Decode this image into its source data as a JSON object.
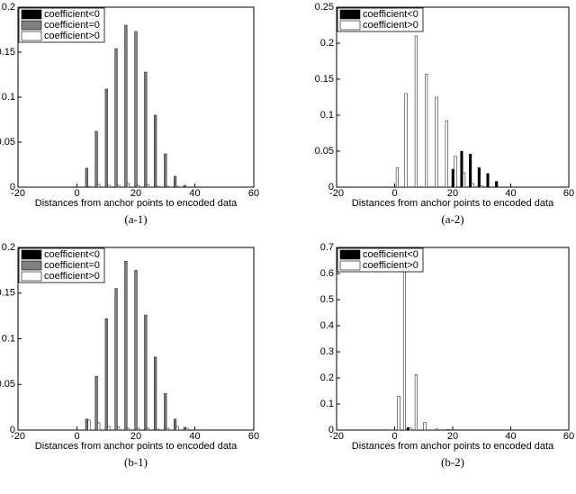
{
  "chart_data": [
    {
      "type": "bar",
      "caption": "(a-1)",
      "x_label": "Distances from anchor points to encoded data",
      "x": [
        3.3,
        6.6,
        10,
        13.3,
        16.6,
        20,
        23.3,
        26.6,
        30,
        33.3,
        36.6
      ],
      "series": [
        {
          "name": "coefficient<0",
          "color": "#000000",
          "values": [
            0,
            0,
            0,
            0,
            0,
            0,
            0,
            0,
            0,
            0,
            0
          ]
        },
        {
          "name": "coefficient=0",
          "color": "#808080",
          "values": [
            0.021,
            0.062,
            0.109,
            0.154,
            0.18,
            0.173,
            0.128,
            0.08,
            0.037,
            0.012,
            0.002
          ]
        },
        {
          "name": "coefficient>0",
          "color": "#ffffff",
          "values": [
            0.001,
            0.003,
            0.002,
            0.002,
            0.004,
            0.002,
            0.003,
            0.001,
            0.001,
            0.001,
            0
          ]
        }
      ],
      "xlim": [
        -20,
        60
      ],
      "xticks": [
        -20,
        0,
        20,
        40,
        60
      ],
      "ylim": [
        0,
        0.2
      ],
      "yticks": [
        0,
        0.05,
        0.1,
        0.15,
        0.2
      ],
      "legend": "upper left"
    },
    {
      "type": "bar",
      "caption": "(a-2)",
      "x_label": "Distances from anchor points to encoded data",
      "x": [
        0.5,
        3.5,
        7,
        10.5,
        14,
        17.5,
        20.5,
        23.5,
        26.5,
        29.5,
        32.5,
        35.5
      ],
      "series": [
        {
          "name": "coefficient<0",
          "color": "#000000",
          "values": [
            0,
            0,
            0,
            0,
            0,
            0,
            0.025,
            0.05,
            0.046,
            0.027,
            0.019,
            0.008
          ]
        },
        {
          "name": "coefficient>0",
          "color": "#ffffff",
          "values": [
            0.027,
            0.13,
            0.21,
            0.157,
            0.125,
            0.092,
            0.043,
            0.02,
            0.005,
            0.002,
            0,
            0
          ]
        }
      ],
      "xlim": [
        -20,
        60
      ],
      "xticks": [
        -20,
        0,
        20,
        40,
        60
      ],
      "ylim": [
        0,
        0.25
      ],
      "yticks": [
        0,
        0.05,
        0.1,
        0.15,
        0.2,
        0.25
      ],
      "legend": "upper left"
    },
    {
      "type": "bar",
      "caption": "(b-1)",
      "x_label": "Distances from anchor points to encoded data",
      "x": [
        3.3,
        6.6,
        10,
        13.3,
        16.6,
        20,
        23.3,
        26.6,
        30,
        33.3,
        36.6
      ],
      "series": [
        {
          "name": "coefficient<0",
          "color": "#000000",
          "values": [
            0,
            0,
            0,
            0,
            0,
            0,
            0,
            0,
            0,
            0,
            0
          ]
        },
        {
          "name": "coefficient=0",
          "color": "#808080",
          "values": [
            0.012,
            0.059,
            0.122,
            0.155,
            0.185,
            0.175,
            0.126,
            0.08,
            0.04,
            0.012,
            0.003
          ]
        },
        {
          "name": "coefficient>0",
          "color": "#ffffff",
          "values": [
            0.011,
            0.008,
            0.004,
            0.003,
            0.002,
            0.002,
            0.002,
            0.001,
            0.002,
            0.004,
            0.002
          ]
        }
      ],
      "xlim": [
        -20,
        60
      ],
      "xticks": [
        -20,
        0,
        20,
        40,
        60
      ],
      "ylim": [
        0,
        0.2
      ],
      "yticks": [
        0,
        0.05,
        0.1,
        0.15,
        0.2
      ],
      "legend": "upper left"
    },
    {
      "type": "bar",
      "caption": "(b-2)",
      "x_label": "Distances from anchor points to encoded data",
      "x": [
        1,
        3,
        5,
        7,
        10,
        14,
        18
      ],
      "series": [
        {
          "name": "coefficient<0",
          "color": "#000000",
          "values": [
            0,
            0,
            0.01,
            0,
            0,
            0,
            0
          ]
        },
        {
          "name": "coefficient>0",
          "color": "#ffffff",
          "values": [
            0.13,
            0.62,
            0.008,
            0.213,
            0.03,
            0.004,
            0.003
          ]
        }
      ],
      "xlim": [
        -20,
        60
      ],
      "xticks": [
        -20,
        0,
        20,
        40,
        60
      ],
      "ylim": [
        0,
        0.7
      ],
      "yticks": [
        0,
        0.1,
        0.2,
        0.3,
        0.4,
        0.5,
        0.6,
        0.7
      ],
      "legend": "upper left"
    }
  ]
}
